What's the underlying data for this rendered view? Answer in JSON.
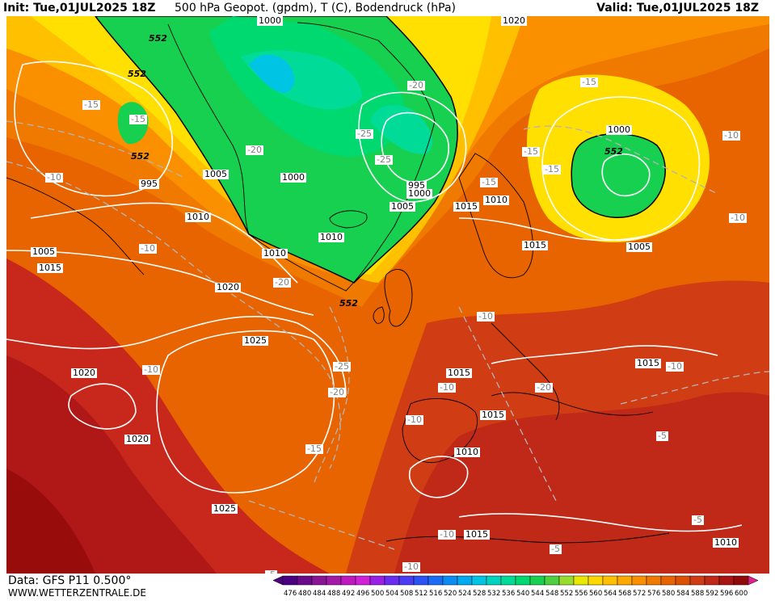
{
  "header": {
    "init": "Init: Tue,01JUL2025 18Z",
    "title": "500 hPa Geopot. (gpdm), T (C), Bodendruck (hPa)",
    "valid": "Valid: Tue,01JUL2025 18Z"
  },
  "footer": {
    "data_source": "Data: GFS P11 0.500°",
    "website": "WWW.WETTERZENTRALE.DE"
  },
  "legend": {
    "values": [
      "476",
      "480",
      "484",
      "488",
      "492",
      "496",
      "500",
      "504",
      "508",
      "512",
      "516",
      "520",
      "524",
      "528",
      "532",
      "536",
      "540",
      "544",
      "548",
      "552",
      "556",
      "560",
      "564",
      "568",
      "572",
      "576",
      "580",
      "584",
      "588",
      "592",
      "596",
      "600"
    ],
    "colors": [
      "#4b0082",
      "#6a0a8a",
      "#8a1496",
      "#a41aa8",
      "#c018c0",
      "#d020d8",
      "#9a20e6",
      "#6a2cf0",
      "#4a3cf4",
      "#2a52f4",
      "#1a6cf6",
      "#0a8cf4",
      "#00aaf0",
      "#00c4e4",
      "#00d4c0",
      "#00dc98",
      "#00d870",
      "#18d050",
      "#50d040",
      "#98dc30",
      "#e8e800",
      "#ffd800",
      "#ffc000",
      "#ffa800",
      "#fa9000",
      "#f07a00",
      "#e86400",
      "#dc5000",
      "#d03c14",
      "#c02818",
      "#a81414",
      "#900a0a"
    ]
  },
  "pressure_labels": [
    "1000",
    "1020",
    "995",
    "1005",
    "1000",
    "1010",
    "1005",
    "1015",
    "1010",
    "1000",
    "995",
    "1000",
    "1005",
    "1015",
    "1010",
    "1010",
    "1015",
    "1020",
    "1025",
    "1005",
    "1020",
    "1015",
    "1020",
    "1025",
    "1015",
    "1015",
    "1010",
    "1015",
    "1010"
  ],
  "temp_labels": [
    "-15",
    "-15",
    "-10",
    "-10",
    "-25",
    "-20",
    "-25",
    "-25",
    "-20",
    "-15",
    "-15",
    "-15",
    "-20",
    "-10",
    "-10",
    "-10",
    "-20",
    "-25",
    "-10",
    "-20",
    "-10",
    "-10",
    "-15",
    "-10",
    "-5",
    "-5",
    "-10",
    "-5",
    "-10",
    "-15",
    "-5"
  ],
  "geopot_labels": [
    "552",
    "552",
    "552",
    "552",
    "552"
  ]
}
